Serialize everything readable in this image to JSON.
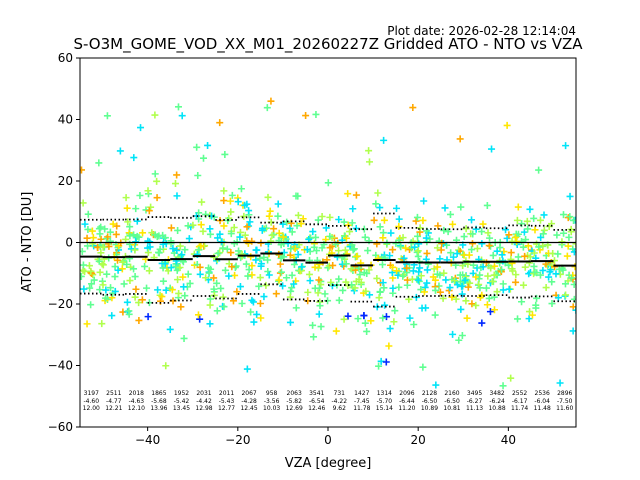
{
  "plot_date": "Plot date: 2026-02-28 12:14:04",
  "chart_data": {
    "type": "scatter",
    "title": "S-O3M_GOME_VOD_XX_M01_20260227Z Gridded ATO - NTO vs VZA",
    "xlabel": "VZA [degree]",
    "ylabel": "ATO - NTO [DU]",
    "xlim": [
      -55,
      55
    ],
    "ylim": [
      -60,
      60
    ],
    "xticks": [
      -40,
      -20,
      0,
      20,
      40
    ],
    "yticks": [
      -60,
      -40,
      -20,
      0,
      20,
      40,
      60
    ],
    "zero_line": 0,
    "marker": "+",
    "colors": {
      "main_density": "#5fff91",
      "secondary": "#b0ff4d",
      "cyan": "#00e4f8",
      "yellow": "#ffe600",
      "orange": "#ffa800",
      "blue": "#0028ff",
      "mean_line": "#000000",
      "std_line": "#000000"
    },
    "bin_centers": [
      -52.5,
      -47.5,
      -42.5,
      -37.5,
      -32.5,
      -27.5,
      -22.5,
      -17.5,
      -12.5,
      -7.5,
      -2.5,
      2.5,
      7.5,
      12.5,
      17.5,
      22.5,
      27.5,
      32.5,
      37.5,
      42.5,
      47.5,
      52.5
    ],
    "bin_stats": {
      "count": [
        3197,
        2511,
        2018,
        1865,
        1952,
        2031,
        2011,
        2067,
        958,
        2063,
        3541,
        731,
        1427,
        1314,
        2096,
        2128,
        2160,
        3495,
        3482,
        2552,
        2536,
        2896
      ],
      "mean": [
        -4.6,
        -4.77,
        -4.63,
        -5.68,
        -5.42,
        -4.42,
        -5.43,
        -4.28,
        -3.56,
        -5.82,
        -6.54,
        -4.22,
        -7.45,
        -5.7,
        -6.44,
        -6.5,
        -6.5,
        -6.27,
        -6.24,
        -6.17,
        -6.04,
        -7.5
      ],
      "std": [
        12.0,
        12.21,
        12.1,
        13.96,
        13.45,
        12.98,
        12.77,
        12.45,
        10.03,
        12.69,
        12.46,
        9.62,
        11.78,
        15.14,
        11.2,
        10.89,
        10.81,
        11.13,
        10.88,
        11.74,
        11.48,
        11.6
      ]
    }
  }
}
